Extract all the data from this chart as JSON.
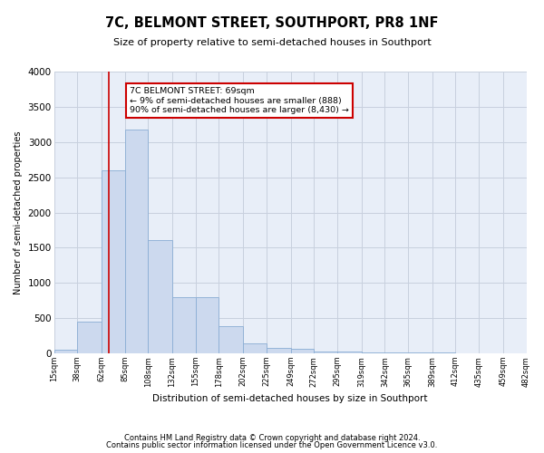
{
  "title": "7C, BELMONT STREET, SOUTHPORT, PR8 1NF",
  "subtitle": "Size of property relative to semi-detached houses in Southport",
  "xlabel": "Distribution of semi-detached houses by size in Southport",
  "ylabel": "Number of semi-detached properties",
  "footer_line1": "Contains HM Land Registry data © Crown copyright and database right 2024.",
  "footer_line2": "Contains public sector information licensed under the Open Government Licence v3.0.",
  "annotation_title": "7C BELMONT STREET: 69sqm",
  "annotation_line1": "← 9% of semi-detached houses are smaller (888)",
  "annotation_line2": "90% of semi-detached houses are larger (8,430) →",
  "property_line_x": 69,
  "bin_edges": [
    15,
    38,
    62,
    85,
    108,
    132,
    155,
    178,
    202,
    225,
    249,
    272,
    295,
    319,
    342,
    365,
    389,
    412,
    435,
    459,
    482
  ],
  "bin_heights": [
    50,
    450,
    2600,
    3180,
    1610,
    800,
    800,
    390,
    140,
    80,
    70,
    30,
    30,
    10,
    10,
    10,
    10,
    5,
    5,
    5
  ],
  "bar_color": "#ccd9ee",
  "bar_edge_color": "#8aadd4",
  "vline_color": "#cc0000",
  "annotation_box_color": "#cc0000",
  "grid_color": "#c8d0de",
  "bg_color": "#e8eef8",
  "ylim": [
    0,
    4000
  ],
  "yticks": [
    0,
    500,
    1000,
    1500,
    2000,
    2500,
    3000,
    3500,
    4000
  ]
}
